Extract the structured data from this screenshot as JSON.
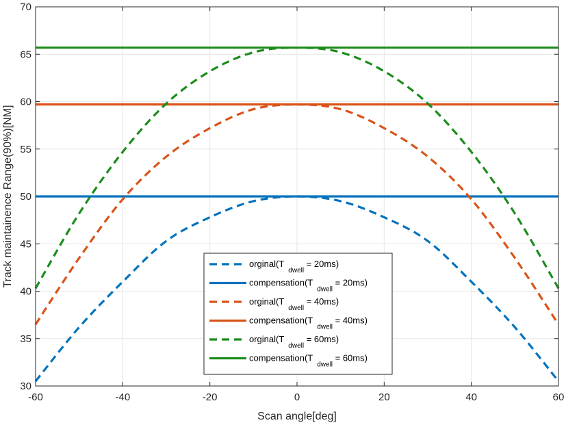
{
  "chart_data": {
    "type": "line",
    "title": "",
    "xlabel": "Scan angle[deg]",
    "ylabel": "Track maintainence Range(90%)[NM]",
    "xlim": [
      -60,
      60
    ],
    "ylim": [
      30,
      70
    ],
    "xticks": [
      -60,
      -40,
      -20,
      0,
      20,
      40,
      60
    ],
    "yticks": [
      30,
      35,
      40,
      45,
      50,
      55,
      60,
      65,
      70
    ],
    "grid": true,
    "legend_position": "bottom-center",
    "x": [
      -60,
      -50,
      -40,
      -30,
      -20,
      -10,
      0,
      10,
      20,
      30,
      40,
      50,
      60
    ],
    "series": [
      {
        "name": "orginal(T dwell = 20ms)",
        "label_parts": [
          "orginal(T",
          "dwell",
          " = 20ms)"
        ],
        "color": "#0072BD",
        "style": "dashed",
        "values": [
          30.5,
          36.2,
          41.0,
          45.3,
          47.8,
          49.5,
          50.0,
          49.5,
          47.8,
          45.3,
          41.0,
          36.2,
          30.5
        ]
      },
      {
        "name": "compensation(T dwell = 20ms)",
        "label_parts": [
          "compensation(T",
          "dwell",
          " = 20ms)"
        ],
        "color": "#0072BD",
        "style": "solid",
        "values": [
          50.0,
          50.0,
          50.0,
          50.0,
          50.0,
          50.0,
          50.0,
          50.0,
          50.0,
          50.0,
          50.0,
          50.0,
          50.0
        ]
      },
      {
        "name": "orginal(T dwell = 40ms)",
        "label_parts": [
          "orginal(T",
          "dwell",
          " = 40ms)"
        ],
        "color": "#D95319",
        "style": "dashed",
        "values": [
          36.5,
          43.5,
          49.7,
          54.2,
          57.2,
          59.2,
          59.7,
          59.2,
          57.2,
          54.2,
          49.7,
          43.5,
          36.5
        ]
      },
      {
        "name": "compensation(T dwell = 40ms)",
        "label_parts": [
          "compensation(T",
          "dwell",
          " = 40ms)"
        ],
        "color": "#D95319",
        "style": "solid",
        "values": [
          59.7,
          59.7,
          59.7,
          59.7,
          59.7,
          59.7,
          59.7,
          59.7,
          59.7,
          59.7,
          59.7,
          59.7,
          59.7
        ]
      },
      {
        "name": "orginal(T dwell = 60ms)",
        "label_parts": [
          "orginal(T",
          "dwell",
          " = 60ms)"
        ],
        "color": "#1B8C1B",
        "style": "dashed",
        "values": [
          40.3,
          48.2,
          54.7,
          59.8,
          63.2,
          65.2,
          65.7,
          65.2,
          63.2,
          59.8,
          54.7,
          48.2,
          40.3
        ]
      },
      {
        "name": "compensation(T dwell = 60ms)",
        "label_parts": [
          "compensation(T",
          "dwell",
          " = 60ms)"
        ],
        "color": "#1B8C1B",
        "style": "solid",
        "values": [
          65.7,
          65.7,
          65.7,
          65.7,
          65.7,
          65.7,
          65.7,
          65.7,
          65.7,
          65.7,
          65.7,
          65.7,
          65.7
        ]
      }
    ]
  }
}
